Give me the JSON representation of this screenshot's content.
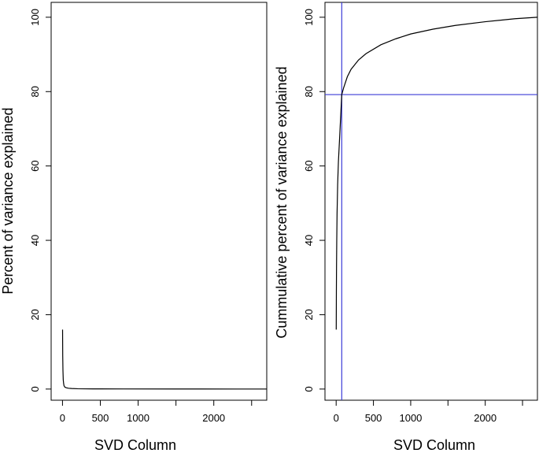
{
  "chart_data": [
    {
      "type": "line",
      "xlabel": "SVD Column",
      "ylabel": "Percent of variance explained",
      "xlim": [
        -150,
        2700
      ],
      "ylim": [
        -3,
        104
      ],
      "xticks": [
        0,
        500,
        1000,
        1500,
        2000,
        2500
      ],
      "xtick_labels": [
        "0",
        "500",
        "1000",
        "",
        "2000",
        ""
      ],
      "yticks": [
        0,
        20,
        40,
        60,
        80,
        100
      ],
      "yticks_labels": [
        "0",
        "20",
        "40",
        "60",
        "80",
        "100"
      ],
      "grid": false,
      "series": [
        {
          "x": [
            1,
            3,
            6,
            10,
            15,
            20,
            30,
            50,
            80,
            120,
            200,
            400,
            800,
            1500,
            2300,
            2700
          ],
          "values": [
            16,
            9,
            5,
            2.5,
            1.5,
            0.9,
            0.55,
            0.35,
            0.22,
            0.15,
            0.09,
            0.05,
            0.03,
            0.02,
            0.01,
            0.005
          ]
        }
      ]
    },
    {
      "type": "line",
      "xlabel": "SVD Column",
      "ylabel": "Cummulative percent of variance explained",
      "xlim": [
        -150,
        2700
      ],
      "ylim": [
        -3,
        104
      ],
      "xticks": [
        0,
        500,
        1000,
        1500,
        2000,
        2500
      ],
      "xtick_labels": [
        "0",
        "500",
        "1000",
        "",
        "2000",
        ""
      ],
      "yticks": [
        0,
        20,
        40,
        60,
        80,
        100
      ],
      "yticks_labels": [
        "0",
        "20",
        "40",
        "60",
        "80",
        "100"
      ],
      "grid": false,
      "reference_lines": {
        "vertical_x": 75,
        "horizontal_y": 79.2,
        "color": "#3b3bd6"
      },
      "series": [
        {
          "x": [
            1,
            3,
            5,
            8,
            12,
            20,
            30,
            50,
            75,
            100,
            150,
            200,
            300,
            400,
            600,
            800,
            1000,
            1300,
            1600,
            2000,
            2400,
            2700
          ],
          "values": [
            16,
            26,
            33,
            40,
            47,
            55,
            61,
            69,
            79.2,
            81,
            84,
            86,
            88.5,
            90.2,
            92.6,
            94.2,
            95.5,
            96.8,
            97.8,
            98.8,
            99.6,
            100
          ]
        }
      ]
    }
  ]
}
